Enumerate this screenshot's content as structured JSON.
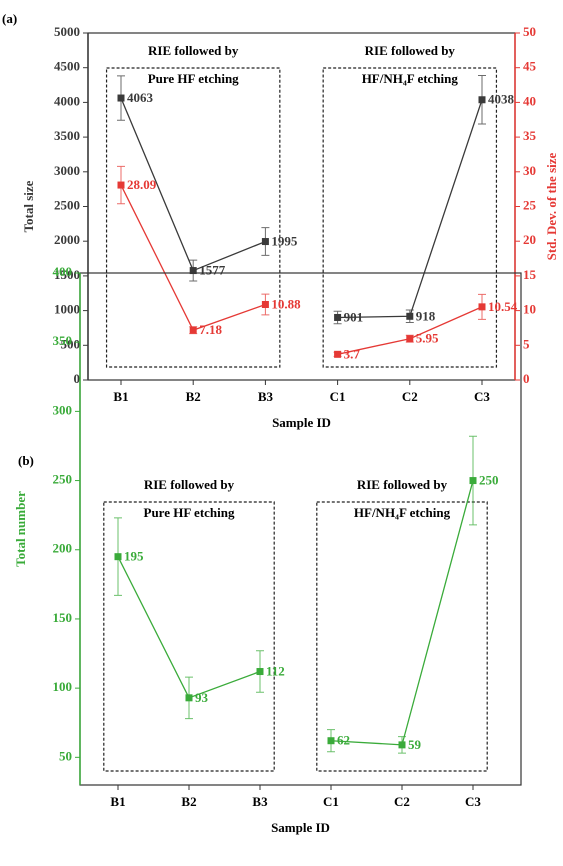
{
  "chart_data": [
    {
      "type": "line",
      "panel_label": "(a)",
      "xlabel": "Sample ID",
      "ylabel": "Total size",
      "y2label": "Std. Dev. of the size",
      "ylim": [
        0,
        5000
      ],
      "yticks": [
        0,
        500,
        1000,
        1500,
        2000,
        2500,
        3000,
        3500,
        4000,
        4500,
        5000
      ],
      "y2lim": [
        0,
        50
      ],
      "y2ticks": [
        0,
        5,
        10,
        15,
        20,
        25,
        30,
        35,
        40,
        45,
        50
      ],
      "groups": [
        {
          "annotation": [
            "RIE followed by",
            "Pure HF etching"
          ],
          "categories": [
            "B1",
            "B2",
            "B3"
          ]
        },
        {
          "annotation": [
            "RIE followed by",
            "HF/NH₄F etching"
          ],
          "categories": [
            "C1",
            "C2",
            "C3"
          ]
        }
      ],
      "series": [
        {
          "name": "Total size",
          "color": "#3a3a3a",
          "values": [
            [
              4063,
              1577,
              1995
            ],
            [
              901,
              918,
              4038
            ]
          ],
          "errors": [
            [
              320,
              150,
              200
            ],
            [
              90,
              90,
              350
            ]
          ]
        },
        {
          "name": "Std. Dev. of the size",
          "axis": "y2",
          "color": "#e53935",
          "values": [
            [
              28.09,
              7.18,
              10.88
            ],
            [
              3.7,
              5.95,
              10.54
            ]
          ],
          "errors": [
            [
              2.7,
              0.5,
              1.5
            ],
            [
              0.3,
              0.5,
              1.8
            ]
          ]
        }
      ]
    },
    {
      "type": "line",
      "panel_label": "(b)",
      "xlabel": "Sample ID",
      "ylabel": "Total number",
      "ylim": [
        30,
        400
      ],
      "yticks": [
        50,
        100,
        150,
        200,
        250,
        300,
        350,
        400
      ],
      "groups": [
        {
          "annotation": [
            "RIE followed by",
            "Pure HF etching"
          ],
          "categories": [
            "B1",
            "B2",
            "B3"
          ]
        },
        {
          "annotation": [
            "RIE followed by",
            "HF/NH₄F etching"
          ],
          "categories": [
            "C1",
            "C2",
            "C3"
          ]
        }
      ],
      "series": [
        {
          "name": "Total number",
          "color": "#3aab3a",
          "values": [
            [
              195,
              93,
              112
            ],
            [
              62,
              59,
              250
            ]
          ],
          "errors": [
            [
              28,
              15,
              15
            ],
            [
              8,
              6,
              32
            ]
          ]
        }
      ]
    }
  ]
}
